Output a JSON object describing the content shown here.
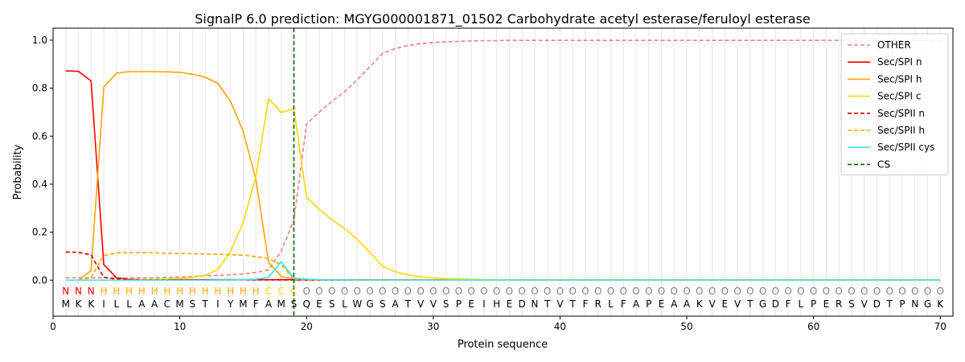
{
  "chart_data": {
    "type": "line",
    "title": "SignalP 6.0 prediction: MGYG000001871_01502 Carbohydrate acetyl esterase/feruloyl esterase",
    "xlabel": "Protein sequence",
    "ylabel": "Probability",
    "xlim": [
      0,
      71
    ],
    "ylim": [
      -0.15,
      1.05
    ],
    "xticks": [
      0,
      10,
      20,
      30,
      40,
      50,
      60,
      70
    ],
    "yticks": [
      0.0,
      0.2,
      0.4,
      0.6,
      0.8,
      1.0
    ],
    "xtick_labels": [
      "0",
      "10",
      "20",
      "30",
      "40",
      "50",
      "60",
      "70"
    ],
    "ytick_labels": [
      "0.0",
      "0.2",
      "0.4",
      "0.6",
      "0.8",
      "1.0"
    ],
    "grid": "vertical lines at each residue position",
    "legend_position": "top-right",
    "sequence": [
      "M",
      "K",
      "K",
      "I",
      "L",
      "L",
      "A",
      "A",
      "C",
      "M",
      "S",
      "T",
      "I",
      "Y",
      "M",
      "F",
      "A",
      "M",
      "S",
      "Q",
      "E",
      "S",
      "L",
      "W",
      "G",
      "S",
      "A",
      "T",
      "V",
      "V",
      "S",
      "P",
      "E",
      "I",
      "H",
      "E",
      "D",
      "N",
      "T",
      "V",
      "T",
      "F",
      "R",
      "L",
      "F",
      "A",
      "P",
      "E",
      "A",
      "A",
      "K",
      "V",
      "E",
      "V",
      "T",
      "G",
      "D",
      "F",
      "L",
      "P",
      "E",
      "R",
      "S",
      "V",
      "D",
      "T",
      "P",
      "N",
      "G",
      "K"
    ],
    "region_labels": [
      "N",
      "N",
      "N",
      "H",
      "H",
      "H",
      "H",
      "H",
      "H",
      "H",
      "H",
      "H",
      "H",
      "H",
      "H",
      "H",
      "C",
      "C",
      "C",
      "O",
      "O",
      "O",
      "O",
      "O",
      "O",
      "O",
      "O",
      "O",
      "O",
      "O",
      "O",
      "O",
      "O",
      "O",
      "O",
      "O",
      "O",
      "O",
      "O",
      "O",
      "O",
      "O",
      "O",
      "O",
      "O",
      "O",
      "O",
      "O",
      "O",
      "O",
      "O",
      "O",
      "O",
      "O",
      "O",
      "O",
      "O",
      "O",
      "O",
      "O",
      "O",
      "O",
      "O",
      "O",
      "O",
      "O",
      "O",
      "O",
      "O",
      "O"
    ],
    "region_colors": {
      "N": "#ff0000",
      "H": "#ffa500",
      "C": "#ffd700",
      "O": "#808080"
    },
    "cleavage_site": {
      "name": "CS",
      "x": 19,
      "color": "#006400"
    },
    "series": [
      {
        "name": "OTHER",
        "color": "#f08080",
        "dash": "dashed",
        "values": [
          0.01,
          0.01,
          0.01,
          0.01,
          0.01,
          0.01,
          0.01,
          0.01,
          0.012,
          0.013,
          0.015,
          0.018,
          0.02,
          0.022,
          0.026,
          0.032,
          0.042,
          0.12,
          0.25,
          0.65,
          0.7,
          0.745,
          0.785,
          0.835,
          0.89,
          0.945,
          0.965,
          0.978,
          0.986,
          0.99,
          0.993,
          0.995,
          0.997,
          0.998,
          0.998,
          0.999,
          0.999,
          0.999,
          0.999,
          0.999,
          0.999,
          0.999,
          0.999,
          0.999,
          0.999,
          0.999,
          0.999,
          0.999,
          0.999,
          0.999,
          0.999,
          0.999,
          0.999,
          0.999,
          0.999,
          0.999,
          0.999,
          0.999,
          0.999,
          0.999,
          0.999,
          0.999,
          0.999,
          0.999,
          0.999,
          0.999,
          0.999,
          0.999,
          0.999,
          0.999
        ]
      },
      {
        "name": "Sec/SPI n",
        "color": "#ff0000",
        "dash": "solid",
        "values": [
          0.872,
          0.87,
          0.83,
          0.065,
          0.01,
          0.003,
          0.002,
          0.002,
          0.002,
          0.002,
          0.002,
          0.002,
          0.002,
          0.002,
          0.002,
          0.002,
          0.002,
          0.002,
          0.002,
          0.001,
          0.001,
          0.001,
          0.001,
          0.001,
          0.001,
          0.001,
          0.001,
          0.001,
          0.001,
          0.001,
          0.001,
          0.001,
          0.001,
          0.001,
          0.001,
          0.001,
          0.001,
          0.001,
          0.001,
          0.001,
          0.001,
          0.001,
          0.001,
          0.001,
          0.001,
          0.001,
          0.001,
          0.001,
          0.001,
          0.001,
          0.001,
          0.001,
          0.001,
          0.001,
          0.001,
          0.001,
          0.001,
          0.001,
          0.001,
          0.001,
          0.001,
          0.001,
          0.001,
          0.001,
          0.001,
          0.001,
          0.001,
          0.001,
          0.001,
          0.001
        ]
      },
      {
        "name": "Sec/SPI h",
        "color": "#ffa500",
        "dash": "solid",
        "values": [
          0.0,
          0.0,
          0.04,
          0.805,
          0.862,
          0.869,
          0.869,
          0.869,
          0.868,
          0.866,
          0.858,
          0.846,
          0.82,
          0.745,
          0.62,
          0.42,
          0.075,
          0.015,
          0.005,
          0.002,
          0.001,
          0.001,
          0.001,
          0.001,
          0.001,
          0.001,
          0.001,
          0.001,
          0.001,
          0.001,
          0.001,
          0.001,
          0.001,
          0.001,
          0.001,
          0.001,
          0.001,
          0.001,
          0.001,
          0.001,
          0.001,
          0.001,
          0.001,
          0.001,
          0.001,
          0.001,
          0.001,
          0.001,
          0.001,
          0.001,
          0.001,
          0.001,
          0.001,
          0.001,
          0.001,
          0.001,
          0.001,
          0.001,
          0.001,
          0.001,
          0.001,
          0.001,
          0.001,
          0.001,
          0.001,
          0.001,
          0.001,
          0.001,
          0.001,
          0.001
        ]
      },
      {
        "name": "Sec/SPI c",
        "color": "#ffd700",
        "dash": "solid",
        "values": [
          0.0,
          0.0,
          0.0,
          0.0,
          0.0,
          0.0,
          0.002,
          0.003,
          0.005,
          0.008,
          0.012,
          0.02,
          0.045,
          0.12,
          0.24,
          0.43,
          0.757,
          0.698,
          0.715,
          0.345,
          0.295,
          0.252,
          0.215,
          0.17,
          0.115,
          0.058,
          0.035,
          0.022,
          0.014,
          0.009,
          0.006,
          0.004,
          0.003,
          0.002,
          0.002,
          0.001,
          0.001,
          0.001,
          0.001,
          0.001,
          0.001,
          0.001,
          0.001,
          0.001,
          0.001,
          0.001,
          0.001,
          0.001,
          0.001,
          0.001,
          0.001,
          0.001,
          0.001,
          0.001,
          0.001,
          0.001,
          0.001,
          0.001,
          0.001,
          0.001,
          0.001,
          0.001,
          0.001,
          0.001,
          0.001,
          0.001,
          0.001,
          0.001,
          0.001,
          0.001
        ]
      },
      {
        "name": "Sec/SPII n",
        "color": "#cc0000",
        "dash": "dashed",
        "values": [
          0.117,
          0.116,
          0.105,
          0.012,
          0.004,
          0.002,
          0.001,
          0.001,
          0.001,
          0.001,
          0.001,
          0.001,
          0.001,
          0.001,
          0.001,
          0.001,
          0.001,
          0.001,
          0.001,
          0.0,
          0.0,
          0.0,
          0.0,
          0.0,
          0.0,
          0.0,
          0.0,
          0.0,
          0.0,
          0.0,
          0.0,
          0.0,
          0.0,
          0.0,
          0.0,
          0.0,
          0.0,
          0.0,
          0.0,
          0.0,
          0.0,
          0.0,
          0.0,
          0.0,
          0.0,
          0.0,
          0.0,
          0.0,
          0.0,
          0.0,
          0.0,
          0.0,
          0.0,
          0.0,
          0.0,
          0.0,
          0.0,
          0.0,
          0.0,
          0.0,
          0.0,
          0.0,
          0.0,
          0.0,
          0.0,
          0.0,
          0.0,
          0.0,
          0.0,
          0.0
        ]
      },
      {
        "name": "Sec/SPII h",
        "color": "#ffa500",
        "dash": "dashed",
        "values": [
          0.0,
          0.0,
          0.01,
          0.103,
          0.113,
          0.115,
          0.115,
          0.114,
          0.112,
          0.111,
          0.11,
          0.109,
          0.108,
          0.106,
          0.104,
          0.098,
          0.09,
          0.065,
          0.004,
          0.001,
          0.0,
          0.0,
          0.0,
          0.0,
          0.0,
          0.0,
          0.0,
          0.0,
          0.0,
          0.0,
          0.0,
          0.0,
          0.0,
          0.0,
          0.0,
          0.0,
          0.0,
          0.0,
          0.0,
          0.0,
          0.0,
          0.0,
          0.0,
          0.0,
          0.0,
          0.0,
          0.0,
          0.0,
          0.0,
          0.0,
          0.0,
          0.0,
          0.0,
          0.0,
          0.0,
          0.0,
          0.0,
          0.0,
          0.0,
          0.0,
          0.0,
          0.0,
          0.0,
          0.0,
          0.0,
          0.0,
          0.0,
          0.0,
          0.0,
          0.0
        ]
      },
      {
        "name": "Sec/SPII cys",
        "color": "#33e6f0",
        "dash": "solid",
        "values": [
          0.0,
          0.0,
          0.0,
          0.0,
          0.0,
          0.0,
          0.0,
          0.0,
          0.0,
          0.0,
          0.0,
          0.0,
          0.001,
          0.001,
          0.002,
          0.004,
          0.012,
          0.077,
          0.008,
          0.004,
          0.002,
          0.001,
          0.001,
          0.0,
          0.0,
          0.0,
          0.0,
          0.0,
          0.0,
          0.0,
          0.0,
          0.0,
          0.0,
          0.0,
          0.0,
          0.0,
          0.0,
          0.0,
          0.0,
          0.0,
          0.0,
          0.0,
          0.0,
          0.0,
          0.0,
          0.0,
          0.0,
          0.0,
          0.0,
          0.0,
          0.0,
          0.0,
          0.0,
          0.0,
          0.0,
          0.0,
          0.0,
          0.0,
          0.0,
          0.0,
          0.0,
          0.0,
          0.0,
          0.0,
          0.0,
          0.0,
          0.0,
          0.0,
          0.0,
          0.0
        ]
      }
    ]
  }
}
